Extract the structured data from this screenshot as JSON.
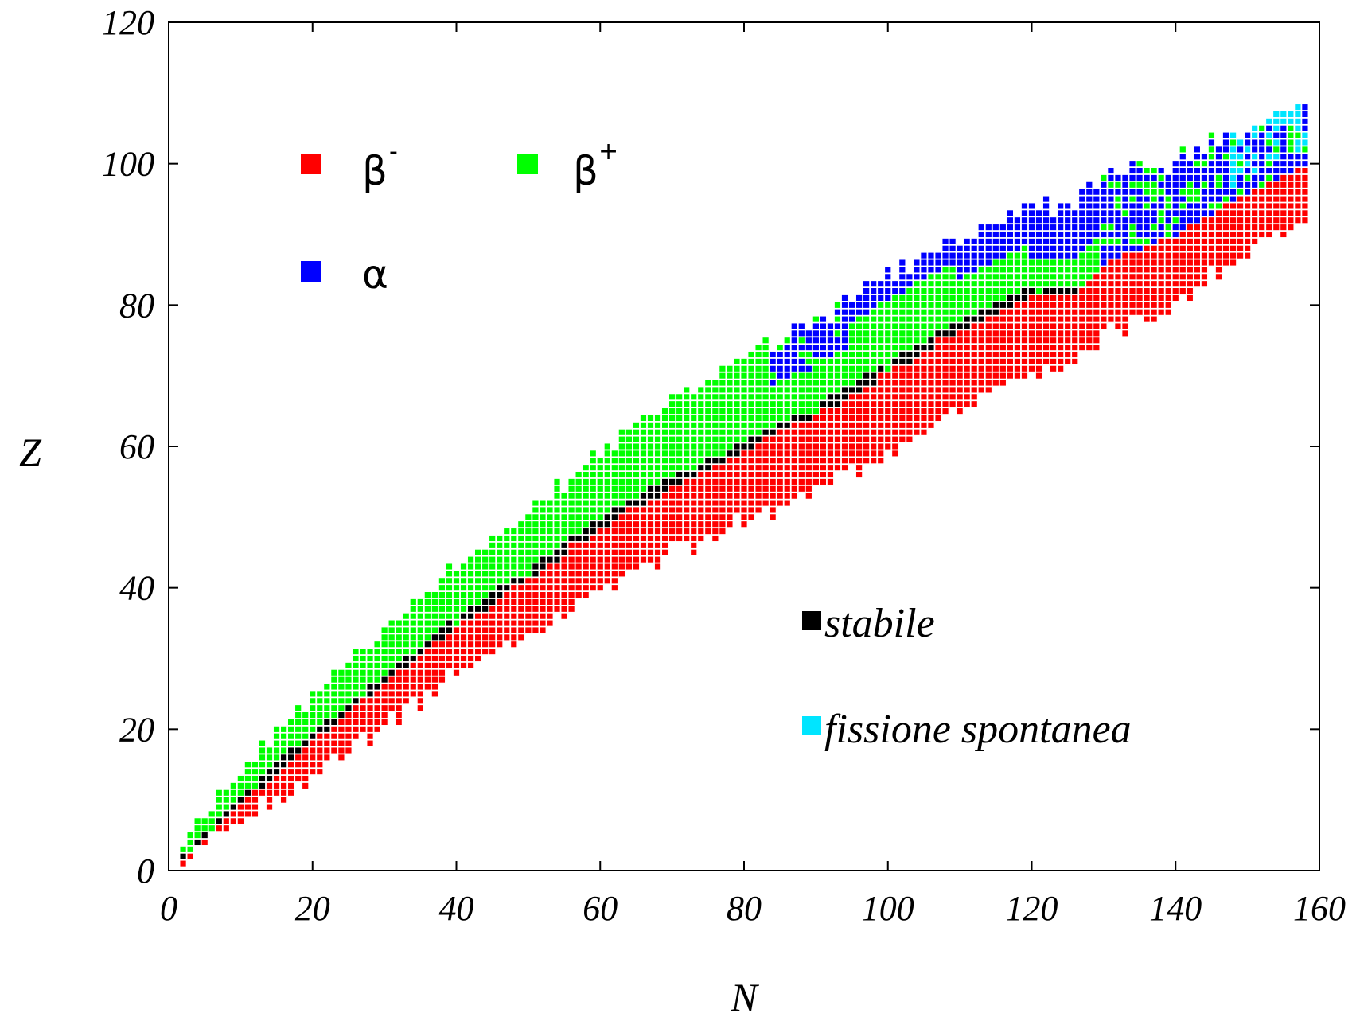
{
  "chart_data": {
    "type": "heatmap",
    "title": "",
    "xlabel": "N",
    "ylabel": "Z",
    "xlim": [
      0,
      160
    ],
    "ylim": [
      0,
      120
    ],
    "x_ticks": [
      "0",
      "20",
      "40",
      "60",
      "80",
      "100",
      "120",
      "140",
      "160"
    ],
    "y_ticks": [
      "0",
      "20",
      "40",
      "60",
      "80",
      "100",
      "120"
    ],
    "legend": [
      {
        "key": "beta_minus",
        "base": "β",
        "sup": "-",
        "color": "#ff0000"
      },
      {
        "key": "beta_plus",
        "base": "β",
        "sup": "+",
        "color": "#00ff00"
      },
      {
        "key": "alpha",
        "base": "α",
        "sup": "",
        "color": "#0000ff"
      },
      {
        "key": "stable",
        "base": "stabile",
        "sup": "",
        "color": "#000000"
      },
      {
        "key": "sf",
        "base": "fissione spontanea",
        "sup": "",
        "color": "#00e5ff"
      }
    ],
    "stability_line_z_vs_n": [
      [
        1,
        1
      ],
      [
        10,
        10
      ],
      [
        20,
        19
      ],
      [
        30,
        27
      ],
      [
        40,
        35
      ],
      [
        50,
        42
      ],
      [
        60,
        49
      ],
      [
        70,
        55
      ],
      [
        80,
        60
      ],
      [
        90,
        65
      ],
      [
        100,
        71
      ],
      [
        110,
        77
      ],
      [
        120,
        82
      ],
      [
        126,
        82
      ],
      [
        130,
        86
      ],
      [
        140,
        90
      ],
      [
        150,
        96
      ],
      [
        158,
        100
      ]
    ],
    "band_width_z": [
      [
        0,
        1
      ],
      [
        20,
        6
      ],
      [
        40,
        8
      ],
      [
        60,
        10
      ],
      [
        80,
        12
      ],
      [
        100,
        13
      ],
      [
        130,
        12
      ],
      [
        160,
        8
      ]
    ],
    "alpha_region_start_n": 84,
    "sf_region_start_n": 148
  }
}
